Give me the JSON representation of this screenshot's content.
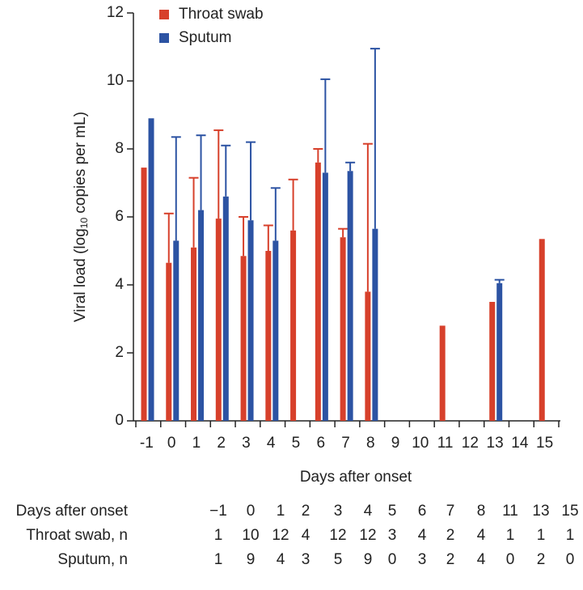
{
  "chart_data": {
    "type": "bar",
    "ylabel": [
      "Viral load (log",
      "10",
      " copies per mL)"
    ],
    "xlabel": "Days after onset",
    "categories": [
      "-1",
      "0",
      "1",
      "2",
      "3",
      "4",
      "5",
      "6",
      "7",
      "8",
      "9",
      "10",
      "11",
      "12",
      "13",
      "14",
      "15"
    ],
    "series": [
      {
        "name": "Throat swab",
        "color": "#d7402b",
        "values": [
          7.45,
          4.65,
          5.1,
          5.95,
          4.85,
          5.0,
          5.6,
          7.6,
          5.4,
          3.8,
          null,
          null,
          2.8,
          null,
          3.5,
          null,
          5.35
        ],
        "errors": [
          null,
          1.45,
          2.05,
          2.6,
          1.15,
          0.75,
          1.5,
          0.4,
          0.25,
          4.35,
          null,
          null,
          null,
          null,
          null,
          null,
          null
        ]
      },
      {
        "name": "Sputum",
        "color": "#2c53a3",
        "values": [
          8.9,
          5.3,
          6.2,
          6.6,
          5.9,
          5.3,
          null,
          7.3,
          7.35,
          5.65,
          null,
          null,
          null,
          null,
          4.05,
          null,
          null
        ],
        "errors": [
          null,
          3.05,
          2.2,
          1.5,
          2.3,
          1.55,
          null,
          2.75,
          0.25,
          5.3,
          null,
          null,
          null,
          null,
          0.1,
          null,
          null
        ]
      }
    ],
    "ylim": [
      0,
      12
    ],
    "yticks": [
      0,
      2,
      4,
      6,
      8,
      10,
      12
    ]
  },
  "table": {
    "rows": [
      [
        "Days after onset",
        "−1",
        0,
        1,
        2,
        3,
        4,
        5,
        6,
        7,
        8,
        11,
        13,
        15
      ],
      [
        "Throat swab, n",
        1,
        10,
        12,
        4,
        12,
        12,
        3,
        4,
        2,
        4,
        1,
        1,
        1
      ],
      [
        "Sputum, n",
        1,
        9,
        4,
        3,
        5,
        9,
        0,
        3,
        2,
        4,
        0,
        2,
        0
      ]
    ]
  }
}
